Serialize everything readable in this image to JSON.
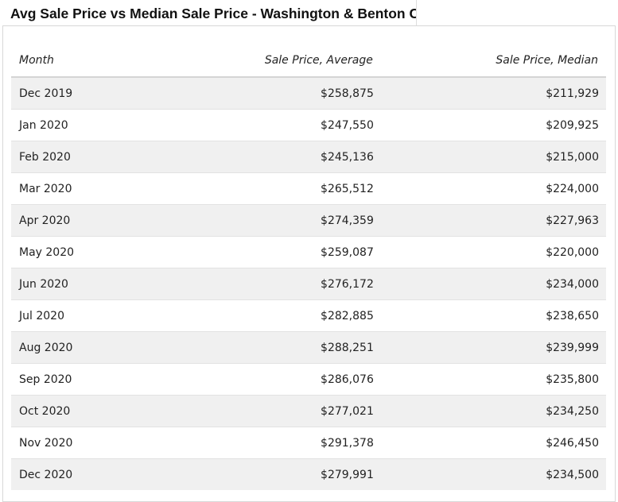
{
  "title": "Avg Sale Price vs Median Sale Price - Washington & Benton C",
  "table": {
    "columns": [
      "Month",
      "Sale Price, Average",
      "Sale Price, Median"
    ],
    "rows": [
      [
        "Dec 2019",
        "$258,875",
        "$211,929"
      ],
      [
        "Jan 2020",
        "$247,550",
        "$209,925"
      ],
      [
        "Feb 2020",
        "$245,136",
        "$215,000"
      ],
      [
        "Mar 2020",
        "$265,512",
        "$224,000"
      ],
      [
        "Apr 2020",
        "$274,359",
        "$227,963"
      ],
      [
        "May 2020",
        "$259,087",
        "$220,000"
      ],
      [
        "Jun 2020",
        "$276,172",
        "$234,000"
      ],
      [
        "Jul 2020",
        "$282,885",
        "$238,650"
      ],
      [
        "Aug 2020",
        "$288,251",
        "$239,999"
      ],
      [
        "Sep 2020",
        "$286,076",
        "$235,800"
      ],
      [
        "Oct 2020",
        "$277,021",
        "$234,250"
      ],
      [
        "Nov 2020",
        "$291,378",
        "$246,450"
      ],
      [
        "Dec 2020",
        "$279,991",
        "$234,500"
      ]
    ]
  }
}
